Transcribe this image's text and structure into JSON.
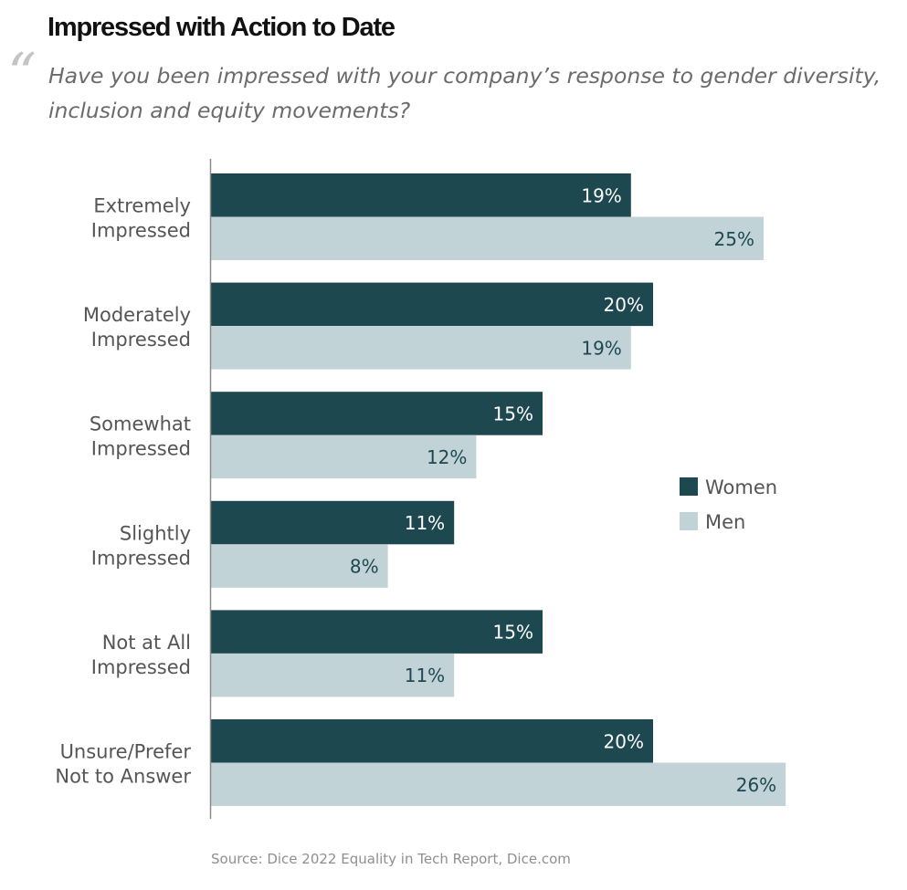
{
  "title": "Impressed with Action to Date",
  "subtitle": "Have you been impressed with your company’s response to gender diversity, inclusion and equity movements?",
  "quote_mark": "“",
  "source": "Source: Dice 2022 Equality in Tech Report, Dice.com",
  "colors": {
    "women": "#1e4850",
    "men": "#c2d3d7",
    "women_label": "#ffffff",
    "men_label": "#1e4850",
    "axis": "#8a8a8a",
    "category_text": "#555555"
  },
  "chart_data": {
    "type": "bar",
    "orientation": "horizontal",
    "categories": [
      [
        "Extremely",
        "Impressed"
      ],
      [
        "Moderately",
        "Impressed"
      ],
      [
        "Somewhat",
        "Impressed"
      ],
      [
        "Slightly",
        "Impressed"
      ],
      [
        "Not at All",
        "Impressed"
      ],
      [
        "Unsure/Prefer",
        "Not to Answer"
      ]
    ],
    "series": [
      {
        "name": "Women",
        "values": [
          19,
          20,
          15,
          11,
          15,
          20
        ]
      },
      {
        "name": "Men",
        "values": [
          25,
          19,
          12,
          8,
          11,
          26
        ]
      }
    ],
    "value_suffix": "%",
    "xlim": [
      0,
      26
    ],
    "grid": false,
    "legend_position": "right"
  }
}
